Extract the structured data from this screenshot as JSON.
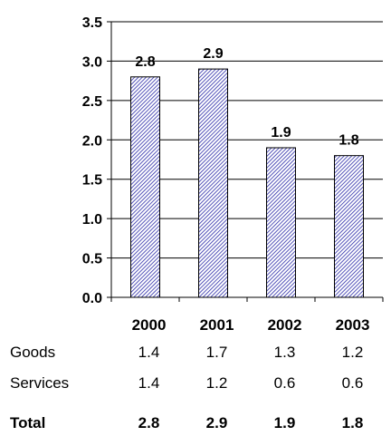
{
  "chart_data": {
    "type": "bar",
    "categories": [
      "2000",
      "2001",
      "2002",
      "2003"
    ],
    "values": [
      2.8,
      2.9,
      1.9,
      1.8
    ],
    "data_labels": [
      "2.8",
      "2.9",
      "1.9",
      "1.8"
    ],
    "title": "",
    "xlabel": "",
    "ylabel": "",
    "ylim": [
      0,
      3.5
    ],
    "yticks": [
      "0.0",
      "0.5",
      "1.0",
      "1.5",
      "2.0",
      "2.5",
      "3.0",
      "3.5"
    ],
    "grid": true,
    "bar_fill": "hatched",
    "bar_color": "#2a2aa8",
    "table": {
      "rows": [
        {
          "label": "Goods",
          "values": [
            "1.4",
            "1.7",
            "1.3",
            "1.2"
          ]
        },
        {
          "label": "Services",
          "values": [
            "1.4",
            "1.2",
            "0.6",
            "0.6"
          ]
        }
      ],
      "total": {
        "label": "Total",
        "values": [
          "2.8",
          "2.9",
          "1.9",
          "1.8"
        ]
      }
    }
  }
}
